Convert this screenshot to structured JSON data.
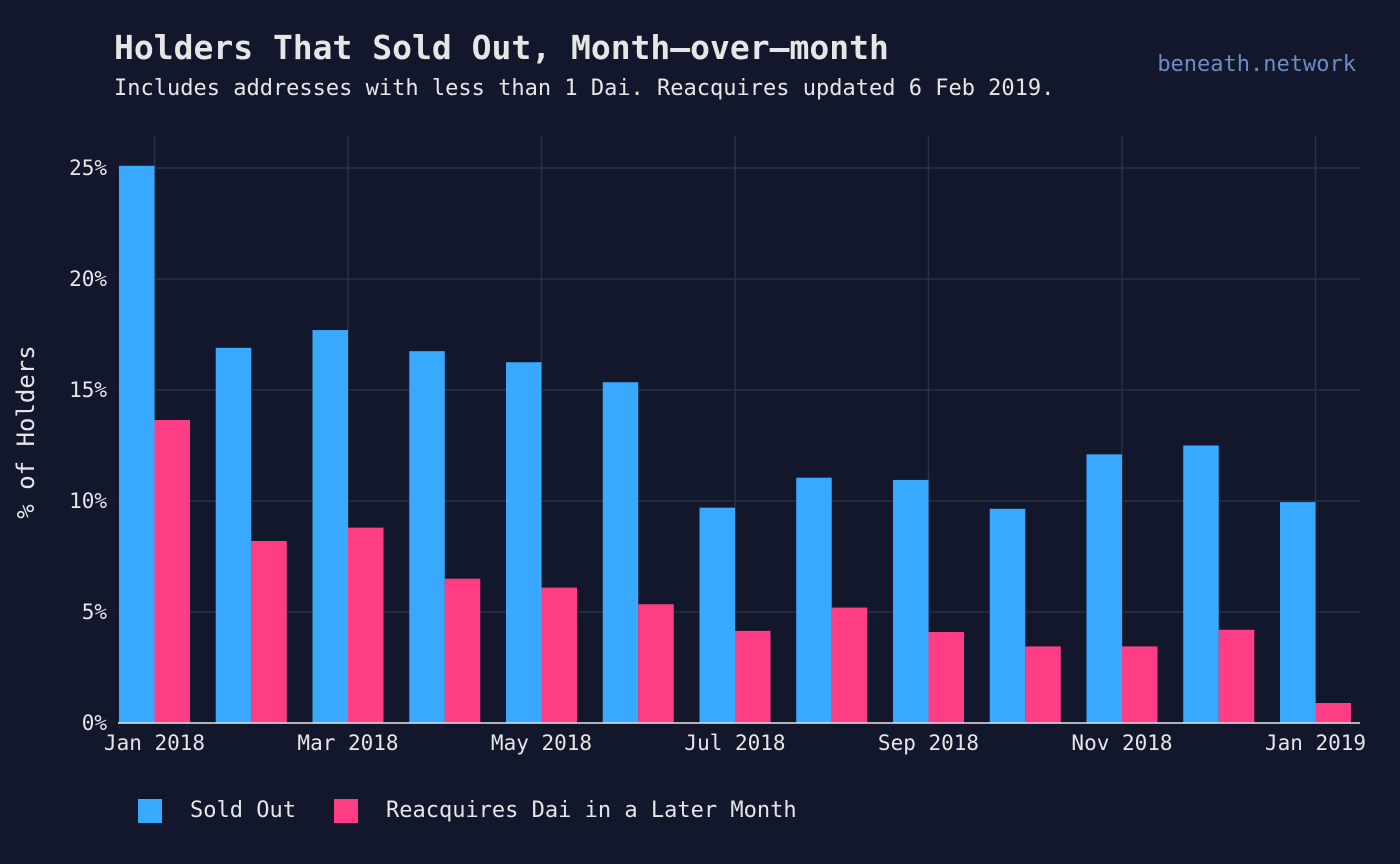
{
  "header": {
    "title": "Holders That Sold Out, Month–over–month",
    "subtitle": "Includes addresses with less than 1 Dai. Reacquires updated 6 Feb 2019.",
    "watermark": "beneath.network"
  },
  "colors": {
    "background": "#12172b",
    "grid": "#2a3145",
    "sold_out": "#39a9ff",
    "reacquires": "#ff3d84",
    "text": "#e6e6e6",
    "watermark": "#6b8cc4"
  },
  "chart_data": {
    "type": "bar",
    "title": "Holders That Sold Out, Month–over–month",
    "subtitle": "Includes addresses with less than 1 Dai. Reacquires updated 6 Feb 2019.",
    "xlabel": "",
    "ylabel": "% of Holders",
    "ylim": [
      0,
      26.5
    ],
    "yticks": [
      0,
      5,
      10,
      15,
      20,
      25
    ],
    "ytick_labels": [
      "0%",
      "5%",
      "10%",
      "15%",
      "20%",
      "25%"
    ],
    "grid": true,
    "legend_position": "bottom-left",
    "categories": [
      "Jan 2018",
      "Feb 2018",
      "Mar 2018",
      "Apr 2018",
      "May 2018",
      "Jun 2018",
      "Jul 2018",
      "Aug 2018",
      "Sep 2018",
      "Oct 2018",
      "Nov 2018",
      "Dec 2018",
      "Jan 2019"
    ],
    "xtick_labels": [
      {
        "index": 0,
        "label": "Jan 2018"
      },
      {
        "index": 2,
        "label": "Mar 2018"
      },
      {
        "index": 4,
        "label": "May 2018"
      },
      {
        "index": 6,
        "label": "Jul 2018"
      },
      {
        "index": 8,
        "label": "Sep 2018"
      },
      {
        "index": 10,
        "label": "Nov 2018"
      },
      {
        "index": 12,
        "label": "Jan 2019"
      }
    ],
    "series": [
      {
        "name": "Sold Out",
        "color": "#39a9ff",
        "values": [
          25.1,
          16.9,
          17.7,
          16.75,
          16.25,
          15.35,
          9.7,
          11.05,
          10.95,
          9.65,
          12.1,
          12.5,
          9.95
        ]
      },
      {
        "name": "Reacquires Dai in a Later Month",
        "color": "#ff3d84",
        "values": [
          13.65,
          8.2,
          8.8,
          6.5,
          6.1,
          5.35,
          4.15,
          5.2,
          4.1,
          3.45,
          3.45,
          4.2,
          0.9
        ]
      }
    ]
  },
  "legend": {
    "items": [
      {
        "label": "Sold Out",
        "color": "#39a9ff"
      },
      {
        "label": "Reacquires Dai in a Later Month",
        "color": "#ff3d84"
      }
    ]
  }
}
